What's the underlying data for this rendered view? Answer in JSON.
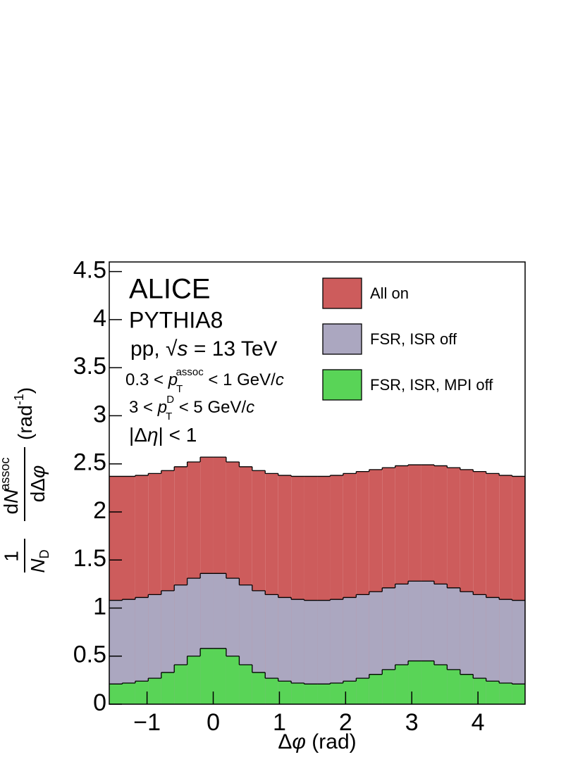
{
  "chart_data": {
    "type": "histogram",
    "bins": [
      -1.571,
      -1.374,
      -1.178,
      -0.982,
      -0.785,
      -0.589,
      -0.393,
      -0.196,
      0,
      0.196,
      0.393,
      0.589,
      0.785,
      0.982,
      1.178,
      1.374,
      1.571,
      1.767,
      1.963,
      2.16,
      2.356,
      2.553,
      2.749,
      2.945,
      3.142,
      3.338,
      3.534,
      3.731,
      3.927,
      4.123,
      4.32,
      4.516,
      4.712
    ],
    "series": [
      {
        "name": "All on",
        "color": "#cd5c5c",
        "values": [
          2.37,
          2.37,
          2.38,
          2.4,
          2.43,
          2.47,
          2.52,
          2.57,
          2.57,
          2.52,
          2.47,
          2.43,
          2.4,
          2.38,
          2.37,
          2.37,
          2.37,
          2.38,
          2.4,
          2.42,
          2.44,
          2.46,
          2.48,
          2.49,
          2.49,
          2.48,
          2.46,
          2.44,
          2.42,
          2.4,
          2.38,
          2.37
        ]
      },
      {
        "name": "FSR, ISR off",
        "color": "#aba7c0",
        "values": [
          1.08,
          1.09,
          1.11,
          1.14,
          1.18,
          1.24,
          1.31,
          1.36,
          1.36,
          1.31,
          1.24,
          1.18,
          1.14,
          1.11,
          1.09,
          1.08,
          1.08,
          1.09,
          1.11,
          1.14,
          1.17,
          1.21,
          1.25,
          1.28,
          1.28,
          1.25,
          1.21,
          1.17,
          1.14,
          1.11,
          1.09,
          1.08
        ]
      },
      {
        "name": "FSR, ISR, MPI off",
        "color": "#59d457",
        "values": [
          0.21,
          0.22,
          0.24,
          0.27,
          0.33,
          0.41,
          0.5,
          0.58,
          0.58,
          0.5,
          0.41,
          0.33,
          0.27,
          0.24,
          0.22,
          0.21,
          0.21,
          0.22,
          0.24,
          0.27,
          0.31,
          0.36,
          0.41,
          0.45,
          0.45,
          0.41,
          0.36,
          0.31,
          0.27,
          0.24,
          0.22,
          0.21
        ]
      }
    ],
    "xlim": [
      -1.571,
      4.712
    ],
    "xticks": [
      {
        "value": -1,
        "label": "−1"
      },
      0,
      1,
      2,
      3,
      4
    ],
    "ylim": [
      0,
      4.6
    ],
    "yticks": [
      0,
      0.5,
      1,
      1.5,
      2,
      2.5,
      3,
      3.5,
      4,
      4.5
    ],
    "xlabel": [
      "Δ",
      "φ",
      " (rad)"
    ],
    "ylabel": [
      "1",
      "N",
      "D",
      "d",
      "N",
      "assoc",
      "d",
      "Δ",
      "φ",
      "(rad",
      "-1",
      ")"
    ],
    "annotations": [
      [
        "ALICE"
      ],
      [
        "PYTHIA8"
      ],
      [
        "pp, ",
        "√",
        "s",
        " = 13 TeV"
      ],
      [
        "0.3 < ",
        "p",
        "T",
        "assoc",
        " < 1 GeV/",
        "c"
      ],
      [
        "3 < ",
        "p",
        "T",
        "D",
        " < 5 GeV/",
        "c"
      ],
      [
        "|Δ",
        "η",
        "| < 1"
      ]
    ],
    "legend": "upper right"
  }
}
